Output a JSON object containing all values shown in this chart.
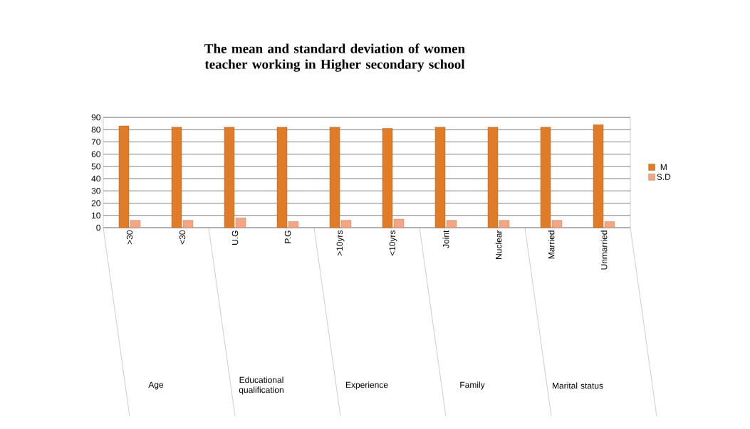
{
  "chart_data": {
    "type": "bar",
    "title": "The mean and standard deviation of women teacher working in Higher secondary school",
    "categories": [
      ">30",
      "<30",
      "U.G",
      "P.G",
      ">10yrs",
      "<10yrs",
      "Joint",
      "Nuclear",
      "Married",
      "Unmarried"
    ],
    "series": [
      {
        "name": "M",
        "color": "#e07b28",
        "values": [
          83,
          82,
          82,
          82,
          82,
          81,
          82,
          82,
          82,
          84
        ]
      },
      {
        "name": "S.D",
        "color": "#f4a582",
        "values": [
          6,
          6,
          8,
          5,
          6,
          7,
          6,
          6,
          6,
          5
        ]
      }
    ],
    "annotations": [
      "Age",
      "Educational qualification",
      "Experience",
      "Family",
      "Marital status"
    ],
    "ylim": [
      0,
      90
    ],
    "yticks": [
      0,
      10,
      20,
      30,
      40,
      50,
      60,
      70,
      80,
      90
    ],
    "grid": "y",
    "legend": "right"
  }
}
